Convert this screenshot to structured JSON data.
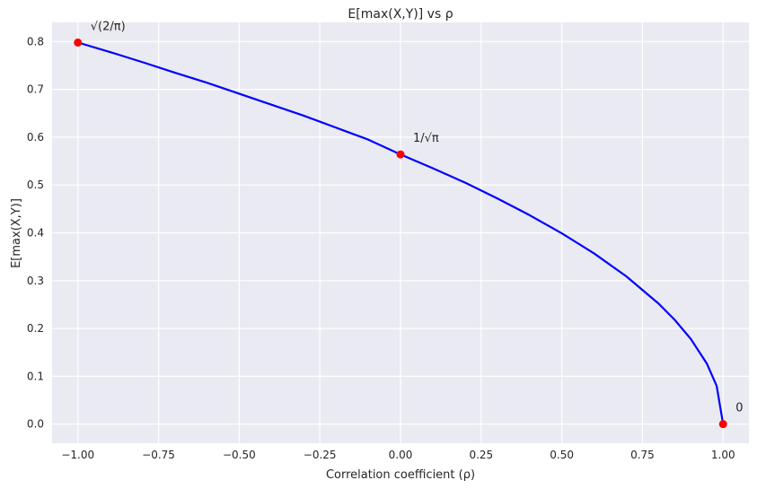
{
  "chart_data": {
    "type": "line",
    "title": "E[max(X,Y)] vs ρ",
    "xlabel": "Correlation coefficient (ρ)",
    "ylabel": "E[max(X,Y)]",
    "xlim": [
      -1.08,
      1.08
    ],
    "ylim": [
      -0.04,
      0.84
    ],
    "xticks": [
      -1.0,
      -0.75,
      -0.5,
      -0.25,
      0.0,
      0.25,
      0.5,
      0.75,
      1.0
    ],
    "xtick_labels": [
      "−1.00",
      "−0.75",
      "−0.50",
      "−0.25",
      "0.00",
      "0.25",
      "0.50",
      "0.75",
      "1.00"
    ],
    "yticks": [
      0.0,
      0.1,
      0.2,
      0.3,
      0.4,
      0.5,
      0.6,
      0.7,
      0.8
    ],
    "ytick_labels": [
      "0.0",
      "0.1",
      "0.2",
      "0.3",
      "0.4",
      "0.5",
      "0.6",
      "0.7",
      "0.8"
    ],
    "grid": true,
    "series": [
      {
        "color": "#0000ff",
        "x": [
          -1.0,
          -0.9,
          -0.8,
          -0.7,
          -0.6,
          -0.5,
          -0.4,
          -0.3,
          -0.2,
          -0.1,
          0.0,
          0.1,
          0.2,
          0.3,
          0.4,
          0.5,
          0.6,
          0.7,
          0.8,
          0.85,
          0.9,
          0.95,
          0.98,
          1.0
        ],
        "y": [
          0.798,
          0.778,
          0.757,
          0.735,
          0.714,
          0.691,
          0.668,
          0.645,
          0.62,
          0.595,
          0.564,
          0.535,
          0.505,
          0.472,
          0.437,
          0.399,
          0.357,
          0.309,
          0.252,
          0.218,
          0.178,
          0.126,
          0.08,
          0.0
        ]
      }
    ],
    "points": {
      "color": "#ff0000",
      "x": [
        -1.0,
        0.0,
        1.0
      ],
      "y": [
        0.798,
        0.564,
        0.0
      ]
    },
    "annotations": [
      {
        "text": "√(2/π)",
        "x": -1.0,
        "y": 0.798
      },
      {
        "text": "1/√π",
        "x": 0.0,
        "y": 0.564
      },
      {
        "text": "0",
        "x": 1.0,
        "y": 0.0
      }
    ]
  }
}
